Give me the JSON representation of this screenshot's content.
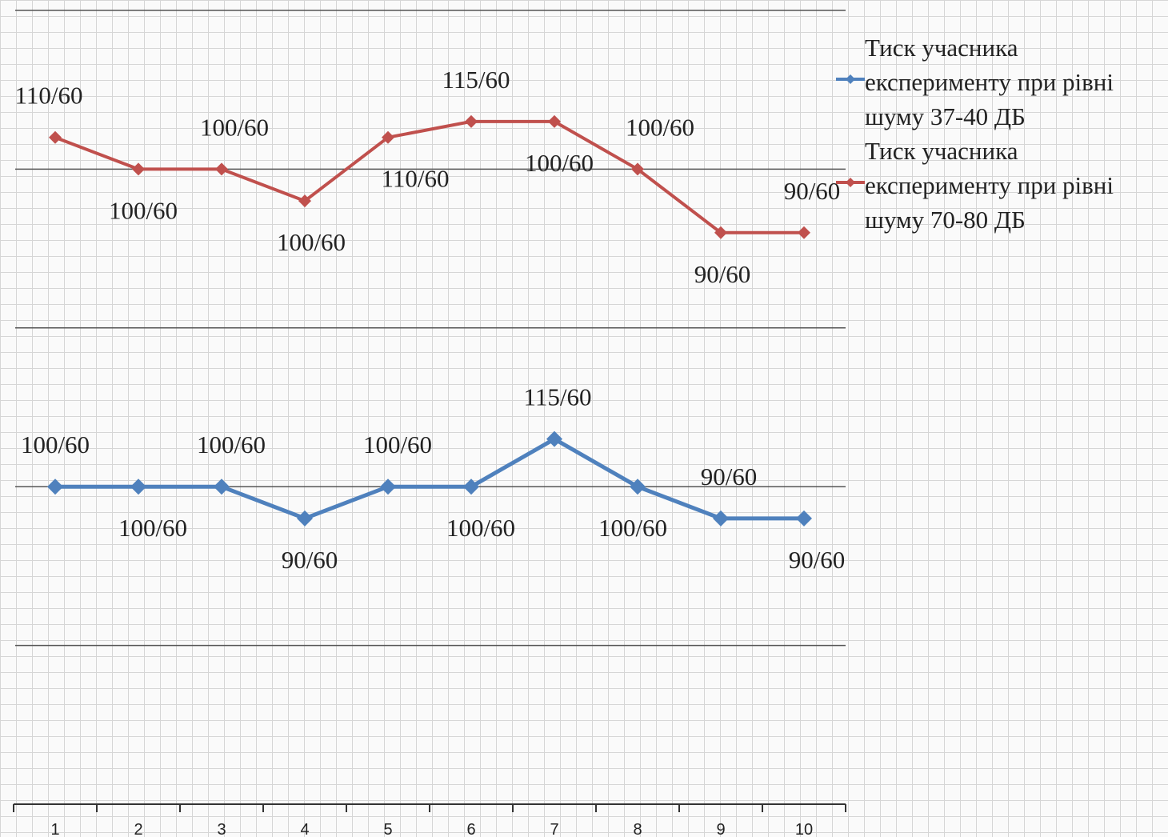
{
  "chart_data": {
    "type": "line",
    "stacked": true,
    "categories": [
      "1",
      "2",
      "3",
      "4",
      "5",
      "6",
      "7",
      "8",
      "9",
      "10"
    ],
    "series": [
      {
        "name": "Тиск учасника експерименту при рівні шуму 37-40 ДБ",
        "color": "#4f81bd",
        "values": [
          100,
          100,
          100,
          90,
          100,
          100,
          115,
          100,
          90,
          90
        ],
        "value_labels": [
          "100/60",
          "100/60",
          "100/60",
          "90/60",
          "100/60",
          "100/60",
          "115/60",
          "100/60",
          "90/60",
          "90/60"
        ]
      },
      {
        "name": "Тиск учасника експерименту при рівні шуму 70-80 ДБ",
        "color": "#c0504d",
        "values": [
          110,
          100,
          100,
          100,
          110,
          115,
          100,
          100,
          90,
          90
        ],
        "value_labels": [
          "110/60",
          "100/60",
          "100/60",
          "100/60",
          "110/60",
          "115/60",
          "100/60",
          "100/60",
          "90/60",
          "90/60"
        ]
      }
    ],
    "ylim": [
      0,
      250
    ],
    "yticks": [
      0,
      50,
      100,
      150,
      200,
      250
    ],
    "grid": true,
    "legend": "right"
  }
}
